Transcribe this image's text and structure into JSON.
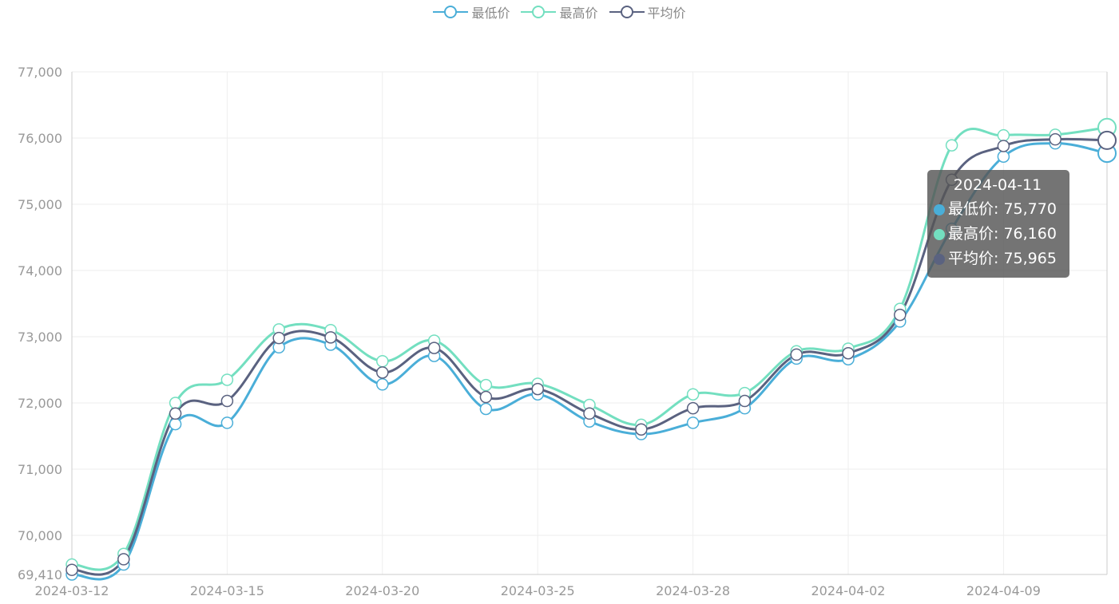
{
  "legend": [
    {
      "label": "最低价",
      "color": "#4aaed8"
    },
    {
      "label": "最高价",
      "color": "#73dfc0"
    },
    {
      "label": "平均价",
      "color": "#5a6280"
    }
  ],
  "tooltip": {
    "title": "2024-04-11",
    "rows": [
      {
        "text": "最低价: 75,770",
        "color": "#4aaed8"
      },
      {
        "text": "最高价: 76,160",
        "color": "#73dfc0"
      },
      {
        "text": "平均价: 75,965",
        "color": "#5a6280"
      }
    ]
  },
  "chart_data": {
    "type": "line",
    "x": [
      "2024-03-12",
      "2024-03-13",
      "2024-03-14",
      "2024-03-15",
      "2024-03-16",
      "2024-03-17",
      "2024-03-20",
      "2024-03-21",
      "2024-03-22",
      "2024-03-25",
      "2024-03-26",
      "2024-03-27",
      "2024-03-28",
      "2024-03-29",
      "2024-04-01",
      "2024-04-02",
      "2024-04-03",
      "2024-04-08",
      "2024-04-09",
      "2024-04-10",
      "2024-04-11"
    ],
    "x_tick_labels": [
      "2024-03-12",
      "2024-03-15",
      "2024-03-20",
      "2024-03-25",
      "2024-03-28",
      "2024-04-02",
      "2024-04-09"
    ],
    "y_ticks": [
      69410,
      70000,
      71000,
      72000,
      73000,
      74000,
      75000,
      76000,
      77000
    ],
    "y_tick_labels": [
      "69,410",
      "70,000",
      "71,000",
      "72,000",
      "73,000",
      "74,000",
      "75,000",
      "76,000",
      "77,000"
    ],
    "ylim": [
      69410,
      77000
    ],
    "grid": true,
    "legend_position": "top-center",
    "series": [
      {
        "name": "最低价",
        "color": "#4aaed8",
        "values": [
          69410,
          69560,
          71680,
          71700,
          72840,
          72880,
          72280,
          72710,
          71910,
          72130,
          71720,
          71530,
          71700,
          71920,
          72670,
          72660,
          73230,
          74630,
          75720,
          75920,
          75770
        ]
      },
      {
        "name": "最高价",
        "color": "#73dfc0",
        "values": [
          69560,
          69720,
          72000,
          72350,
          73110,
          73100,
          72630,
          72940,
          72270,
          72290,
          71970,
          71670,
          72130,
          72150,
          72780,
          72820,
          73420,
          75890,
          76040,
          76050,
          76160
        ]
      },
      {
        "name": "平均价",
        "color": "#5a6280",
        "values": [
          69480,
          69640,
          71840,
          72030,
          72980,
          72990,
          72460,
          72830,
          72090,
          72210,
          71840,
          71600,
          71920,
          72030,
          72730,
          72750,
          73330,
          75370,
          75880,
          75980,
          75965
        ]
      }
    ],
    "highlighted_index": 20
  }
}
